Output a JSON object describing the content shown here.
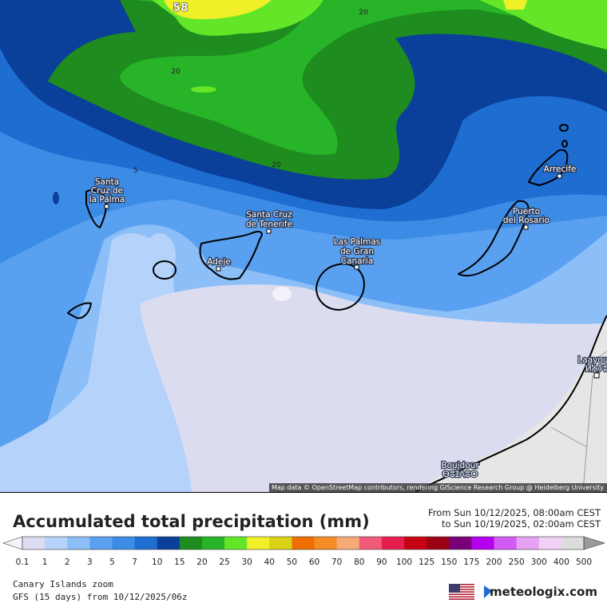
{
  "map": {
    "contour_labels": [
      "58",
      "20",
      "20",
      "20",
      "5"
    ],
    "cities": [
      {
        "lines": [
          "Santa",
          "Cruz de",
          "la Palma"
        ]
      },
      {
        "lines": [
          "Santa Cruz",
          "de Tenerife"
        ]
      },
      {
        "lines": [
          "Adeje"
        ]
      },
      {
        "lines": [
          "Las Palmas",
          "de Gran",
          "Canaria"
        ]
      },
      {
        "lines": [
          "Arrecife"
        ]
      },
      {
        "lines": [
          "Puerto",
          "del Rosario"
        ]
      },
      {
        "lines": [
          "Laayoune",
          "ⵍⵄⵢⵓⵏ"
        ]
      },
      {
        "lines": [
          "Boujdour",
          "ⴱⵓⵊⴷⵓⵔ"
        ]
      }
    ],
    "attribution": "Map data © OpenStreetMap contributors, rendering GIScience Research Group @ Heidelberg University"
  },
  "header": {
    "title": "Accumulated total precipitation (mm)",
    "from": "From Sun 10/12/2025, 08:00am CEST",
    "to": "to Sun 10/19/2025, 02:00am CEST"
  },
  "legend": {
    "under_color": "#f4f4fa",
    "items": [
      {
        "value": 0.1,
        "color": "#dcdcf0"
      },
      {
        "value": 1,
        "color": "#b4d2fa"
      },
      {
        "value": 2,
        "color": "#8cbef8"
      },
      {
        "value": 3,
        "color": "#5aa0f0"
      },
      {
        "value": 5,
        "color": "#3c8ce6"
      },
      {
        "value": 7,
        "color": "#1e6ed2"
      },
      {
        "value": 10,
        "color": "#0a3f9a"
      },
      {
        "value": 15,
        "color": "#1e8c1e"
      },
      {
        "value": 20,
        "color": "#28b428"
      },
      {
        "value": 25,
        "color": "#64e628"
      },
      {
        "value": 30,
        "color": "#f0f028"
      },
      {
        "value": 40,
        "color": "#dcd214"
      },
      {
        "value": 50,
        "color": "#f06e00"
      },
      {
        "value": 60,
        "color": "#f58c28"
      },
      {
        "value": 70,
        "color": "#f5aa78"
      },
      {
        "value": 80,
        "color": "#f05a78"
      },
      {
        "value": 90,
        "color": "#e61e50"
      },
      {
        "value": 100,
        "color": "#c80014"
      },
      {
        "value": 125,
        "color": "#9b0014"
      },
      {
        "value": 150,
        "color": "#780078"
      },
      {
        "value": 175,
        "color": "#b400f0"
      },
      {
        "value": 200,
        "color": "#d25af5"
      },
      {
        "value": 250,
        "color": "#e6a0f5"
      },
      {
        "value": 300,
        "color": "#f0d2f5"
      },
      {
        "value": 400,
        "color": "#dcdcdc"
      },
      {
        "value": 500,
        "color": "#9a9a9a"
      }
    ]
  },
  "footer": {
    "region": "Canary Islands zoom",
    "model": "GFS (15 days) from 10/12/2025/06z",
    "brand": "meteologix.com"
  }
}
